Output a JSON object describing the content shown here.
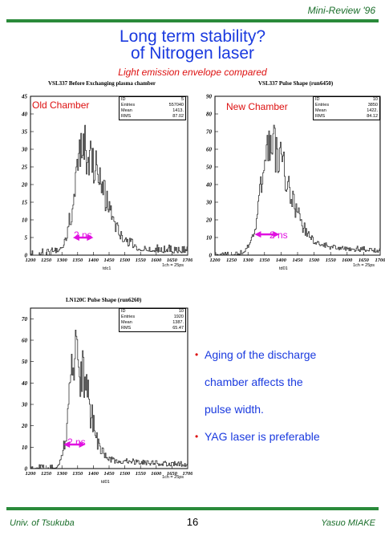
{
  "header": {
    "right": "Mini-Review '96"
  },
  "title": {
    "line1": "Long term stability?",
    "line2": "of Nitrogen laser"
  },
  "subtitle": "Light emission envelope compared",
  "plots": [
    {
      "title": "VSL337 Before Exchanging plasma chamber",
      "label": "Old Chamber",
      "ns_label": "2 ns",
      "hist_name": "tdc1",
      "unit_note": "1ch = 25ps",
      "stats": {
        "id": "5",
        "entries": "557040",
        "mean": "1413.",
        "rms": "87.02"
      }
    },
    {
      "title": "VSL337 Pulse Shape (run6450)",
      "label": "New Chamber",
      "ns_label": "2 ns",
      "hist_name": "td01",
      "unit_note": "1ch = 25ps",
      "stats": {
        "id": "10",
        "entries": "3850",
        "mean": "1422.",
        "rms": "84.12"
      }
    },
    {
      "title": "LN120C Pulse Shape (run6260)",
      "label": "",
      "ns_label": "2 ns",
      "hist_name": "td01",
      "unit_note": "1ch = 25ps",
      "stats": {
        "id": "10",
        "entries": "1920",
        "mean": "1387.",
        "rms": "65.47"
      }
    }
  ],
  "stat_labels": {
    "id": "ID",
    "entries": "Entries",
    "mean": "Mean",
    "rms": "RMS"
  },
  "bullets": [
    "Aging of the discharge",
    "chamber affects the",
    "pulse width.",
    "YAG laser is preferable"
  ],
  "footer": {
    "left": "Univ. of Tsukuba",
    "page": "16",
    "right": "Yasuo MIAKE"
  },
  "chart_data": [
    {
      "type": "bar",
      "title": "VSL337 Before Exchanging plasma chamber",
      "xlim": [
        1200,
        1700
      ],
      "ylim": [
        0,
        45
      ],
      "x_ticks": [
        1200,
        1250,
        1300,
        1350,
        1400,
        1450,
        1500,
        1550,
        1600,
        1650,
        1700
      ],
      "y_ticks": [
        0,
        5,
        10,
        15,
        20,
        25,
        30,
        35,
        40,
        45
      ],
      "peak": 1375,
      "amplitude": 30,
      "width": 60,
      "tail": 0.08,
      "noise": 0.25
    },
    {
      "type": "bar",
      "title": "VSL337 Pulse Shape (run6450)",
      "xlim": [
        1200,
        1700
      ],
      "ylim": [
        0,
        90
      ],
      "x_ticks": [
        1200,
        1250,
        1300,
        1350,
        1400,
        1450,
        1500,
        1550,
        1600,
        1650,
        1700
      ],
      "y_ticks": [
        0,
        10,
        20,
        30,
        40,
        50,
        60,
        70,
        80,
        90
      ],
      "peak": 1370,
      "amplitude": 62,
      "width": 55,
      "tail": 0.12,
      "noise": 0.25
    },
    {
      "type": "bar",
      "title": "LN120C Pulse Shape (run6260)",
      "xlim": [
        1200,
        1700
      ],
      "ylim": [
        0,
        75
      ],
      "x_ticks": [
        1200,
        1250,
        1300,
        1350,
        1400,
        1450,
        1500,
        1550,
        1600,
        1650,
        1700
      ],
      "y_ticks": [
        0,
        10,
        20,
        30,
        40,
        50,
        60,
        70
      ],
      "peak": 1345,
      "amplitude": 52,
      "width": 38,
      "tail": 0.1,
      "noise": 0.3
    }
  ]
}
